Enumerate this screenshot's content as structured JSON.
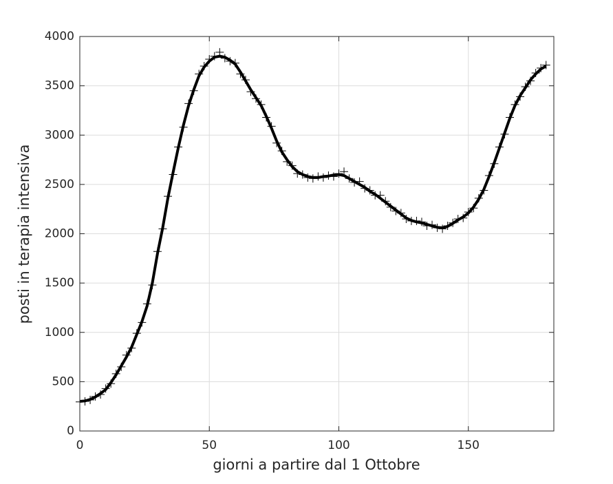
{
  "chart_data": {
    "type": "line",
    "x_label": "giorni a partire dal 1 Ottobre",
    "y_label": "posti in terapia intensiva",
    "x": [
      0,
      2,
      4,
      6,
      8,
      10,
      12,
      14,
      16,
      18,
      20,
      22,
      24,
      26,
      28,
      30,
      32,
      34,
      36,
      38,
      40,
      42,
      44,
      46,
      48,
      50,
      52,
      54,
      56,
      58,
      60,
      62,
      64,
      66,
      68,
      70,
      72,
      74,
      76,
      78,
      80,
      82,
      84,
      86,
      88,
      90,
      92,
      94,
      96,
      98,
      100,
      102,
      104,
      106,
      108,
      110,
      112,
      114,
      116,
      118,
      120,
      122,
      124,
      126,
      128,
      130,
      132,
      134,
      136,
      138,
      140,
      142,
      144,
      146,
      148,
      150,
      152,
      154,
      156,
      158,
      160,
      162,
      164,
      166,
      168,
      170,
      172,
      174,
      176,
      178,
      180
    ],
    "series": [
      {
        "color": "#000000",
        "marker": "+",
        "line": false,
        "values": [
          295,
          300,
          315,
          350,
          370,
          430,
          480,
          580,
          650,
          770,
          840,
          990,
          1100,
          1290,
          1480,
          1820,
          2050,
          2380,
          2600,
          2880,
          3080,
          3320,
          3450,
          3620,
          3700,
          3770,
          3800,
          3840,
          3780,
          3750,
          3730,
          3620,
          3560,
          3440,
          3370,
          3310,
          3180,
          3090,
          2920,
          2840,
          2730,
          2690,
          2610,
          2600,
          2570,
          2560,
          2580,
          2570,
          2590,
          2580,
          2610,
          2630,
          2560,
          2520,
          2530,
          2460,
          2440,
          2390,
          2390,
          2330,
          2270,
          2230,
          2210,
          2150,
          2130,
          2130,
          2120,
          2080,
          2090,
          2060,
          2050,
          2080,
          2110,
          2150,
          2160,
          2220,
          2260,
          2360,
          2440,
          2590,
          2710,
          2880,
          3010,
          3180,
          3310,
          3390,
          3490,
          3550,
          3630,
          3680,
          3710
        ]
      },
      {
        "color": "#000000",
        "marker": null,
        "line": true,
        "values": [
          300,
          305,
          320,
          345,
          380,
          420,
          490,
          570,
          660,
          750,
          850,
          980,
          1110,
          1270,
          1500,
          1800,
          2060,
          2360,
          2620,
          2870,
          3100,
          3300,
          3460,
          3600,
          3690,
          3750,
          3790,
          3800,
          3790,
          3760,
          3720,
          3640,
          3550,
          3460,
          3380,
          3300,
          3190,
          3070,
          2940,
          2830,
          2750,
          2680,
          2630,
          2600,
          2580,
          2570,
          2570,
          2580,
          2585,
          2595,
          2600,
          2590,
          2560,
          2530,
          2500,
          2470,
          2430,
          2400,
          2360,
          2320,
          2280,
          2240,
          2200,
          2160,
          2135,
          2120,
          2110,
          2095,
          2080,
          2065,
          2060,
          2075,
          2105,
          2140,
          2170,
          2210,
          2270,
          2350,
          2450,
          2580,
          2720,
          2870,
          3020,
          3170,
          3300,
          3400,
          3480,
          3560,
          3620,
          3670,
          3700
        ]
      }
    ],
    "xlim": [
      0,
      183
    ],
    "ylim": [
      0,
      4000
    ],
    "xticks": [
      0,
      50,
      100,
      150
    ],
    "yticks": [
      0,
      500,
      1000,
      1500,
      2000,
      2500,
      3000,
      3500,
      4000
    ],
    "grid": true
  }
}
